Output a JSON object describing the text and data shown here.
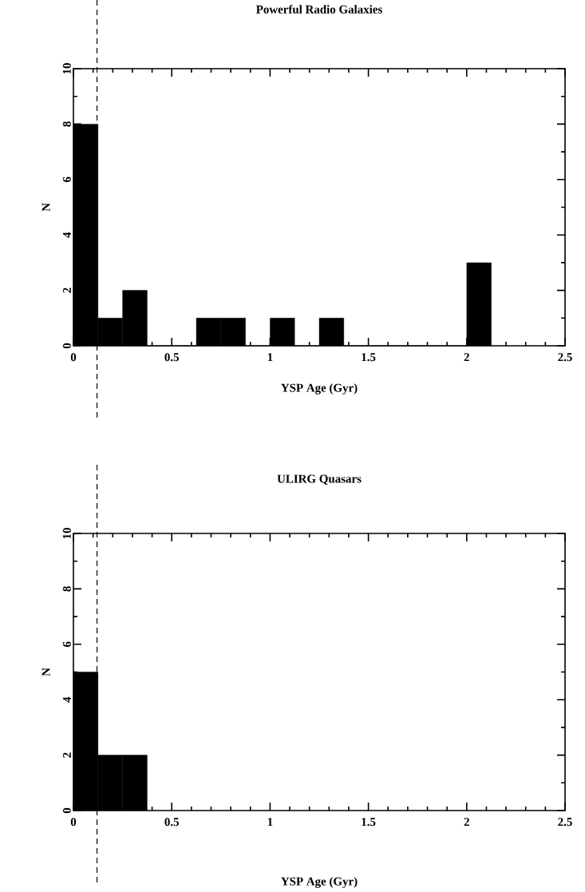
{
  "chart_data": [
    {
      "type": "histogram",
      "title": "Powerful Radio Galaxies",
      "xlabel": "YSP Age (Gyr)",
      "ylabel": "N",
      "color": "#000000",
      "bins": [
        0,
        0.125,
        0.25,
        0.375,
        0.5,
        0.625,
        0.75,
        0.875,
        1,
        1.125,
        1.25,
        1.375,
        1.5,
        1.625,
        1.75,
        1.875,
        2,
        2.125
      ],
      "values": [
        8,
        1,
        2,
        0,
        0,
        1,
        1,
        0,
        1,
        0,
        1,
        0,
        0,
        0,
        0,
        0,
        3
      ],
      "xlim": [
        0,
        2.5
      ],
      "xticks": [
        0,
        0.5,
        1,
        1.5,
        2,
        2.5
      ],
      "ylim": [
        0,
        10
      ],
      "yticks": [
        0,
        2,
        4,
        6,
        8,
        10
      ],
      "ref_lines": [
        {
          "axis": "x",
          "value": 0.12,
          "line_style": "dashed"
        }
      ]
    },
    {
      "type": "histogram",
      "title": "ULIRG Quasars",
      "xlabel": "YSP Age (Gyr)",
      "ylabel": "N",
      "color": "#000000",
      "bins": [
        0,
        0.125,
        0.25,
        0.375
      ],
      "values": [
        5,
        2,
        2
      ],
      "xlim": [
        0,
        2.5
      ],
      "xticks": [
        0,
        0.5,
        1,
        1.5,
        2,
        2.5
      ],
      "ylim": [
        0,
        10
      ],
      "yticks": [
        0,
        2,
        4,
        6,
        8,
        10
      ],
      "ref_lines": [
        {
          "axis": "x",
          "value": 0.12,
          "line_style": "dashed"
        }
      ]
    }
  ]
}
